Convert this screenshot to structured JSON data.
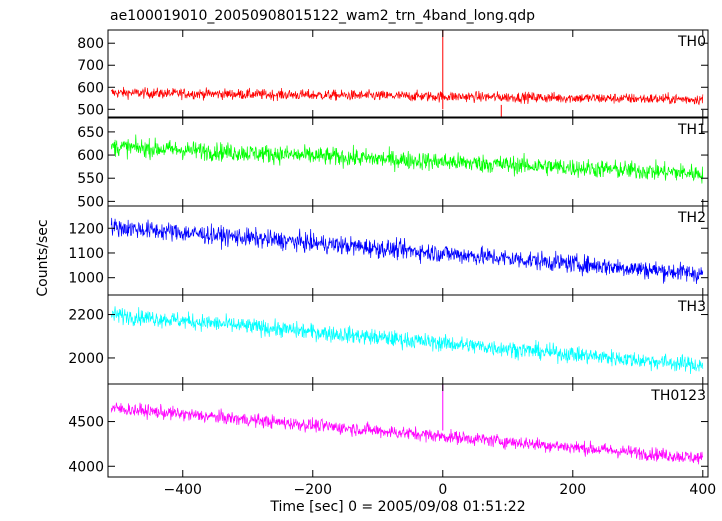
{
  "title": "ae100019010_20050908015122_wam2_trn_4band_long.qdp",
  "chart_data": {
    "type": "line",
    "title": "ae100019010_20050908015122_wam2_trn_4band_long.qdp",
    "xlabel": "Time [sec] 0 = 2005/09/08 01:51:22",
    "ylabel": "Counts/sec",
    "xlim": [
      -515,
      408
    ],
    "x_ticks": [
      -400,
      -200,
      0,
      200,
      400
    ],
    "grid": false,
    "panels": [
      {
        "name": "TH0",
        "color": "#ff0000",
        "ylim": [
          465,
          860
        ],
        "y_ticks": [
          500,
          600,
          700,
          800
        ],
        "x_range": [
          -510,
          400
        ],
        "trend": [
          575,
          545
        ],
        "noise": 24,
        "spikes": [
          {
            "x": 0,
            "top": 860,
            "bottom": 500
          },
          {
            "x": 90,
            "top": 520,
            "bottom": 465
          }
        ]
      },
      {
        "name": "TH1",
        "color": "#00ff00",
        "ylim": [
          490,
          680
        ],
        "y_ticks": [
          500,
          550,
          600,
          650
        ],
        "x_range": [
          -510,
          400
        ],
        "trend": [
          618,
          560
        ],
        "noise": 20,
        "spikes": []
      },
      {
        "name": "TH2",
        "color": "#0000ff",
        "ylim": [
          930,
          1290
        ],
        "y_ticks": [
          1000,
          1100,
          1200
        ],
        "x_range": [
          -510,
          400
        ],
        "trend": [
          1205,
          1015
        ],
        "noise": 38,
        "spikes": []
      },
      {
        "name": "TH3",
        "color": "#00ffff",
        "ylim": [
          1880,
          2290
        ],
        "y_ticks": [
          2000,
          2200
        ],
        "x_range": [
          -510,
          400
        ],
        "trend": [
          2200,
          1965
        ],
        "noise": 38,
        "spikes": []
      },
      {
        "name": "TH0123",
        "color": "#ff00ff",
        "ylim": [
          3880,
          4920
        ],
        "y_ticks": [
          4000,
          4500
        ],
        "x_range": [
          -510,
          400
        ],
        "trend": [
          4650,
          4090
        ],
        "noise": 75,
        "spikes": [
          {
            "x": 0,
            "top": 4920,
            "bottom": 4400
          }
        ]
      }
    ]
  }
}
